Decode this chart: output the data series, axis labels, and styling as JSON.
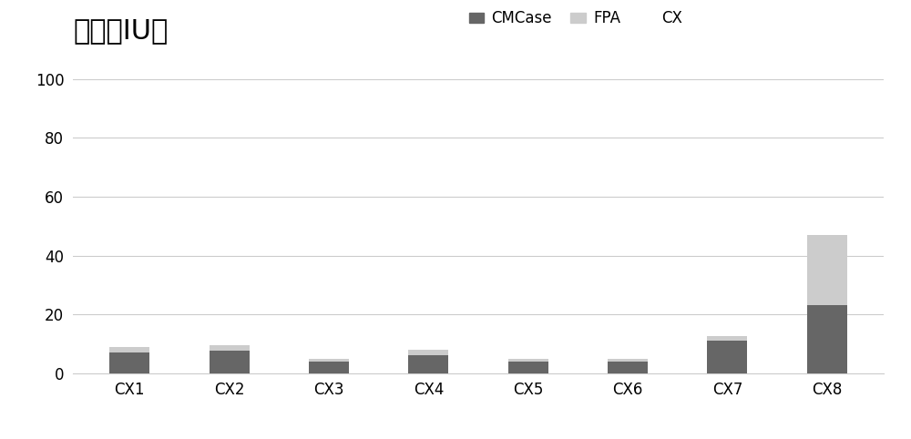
{
  "categories": [
    "CX1",
    "CX2",
    "CX3",
    "CX4",
    "CX5",
    "CX6",
    "CX7",
    "CX8"
  ],
  "cmcase": [
    7.0,
    7.5,
    4.0,
    6.0,
    4.0,
    4.0,
    11.0,
    23.0
  ],
  "fpa": [
    2.0,
    2.0,
    1.0,
    2.0,
    1.0,
    1.0,
    1.5,
    24.0
  ],
  "cmcase_color": "#666666",
  "fpa_color": "#cccccc",
  "title": "醂活（IU）",
  "legend_labels": [
    "CMCase",
    "FPA",
    "CX"
  ],
  "ylim": [
    0,
    100
  ],
  "yticks": [
    0,
    20,
    40,
    60,
    80,
    100
  ],
  "background_color": "#ffffff",
  "grid_color": "#cccccc",
  "title_fontsize": 22,
  "legend_fontsize": 12,
  "tick_fontsize": 12
}
